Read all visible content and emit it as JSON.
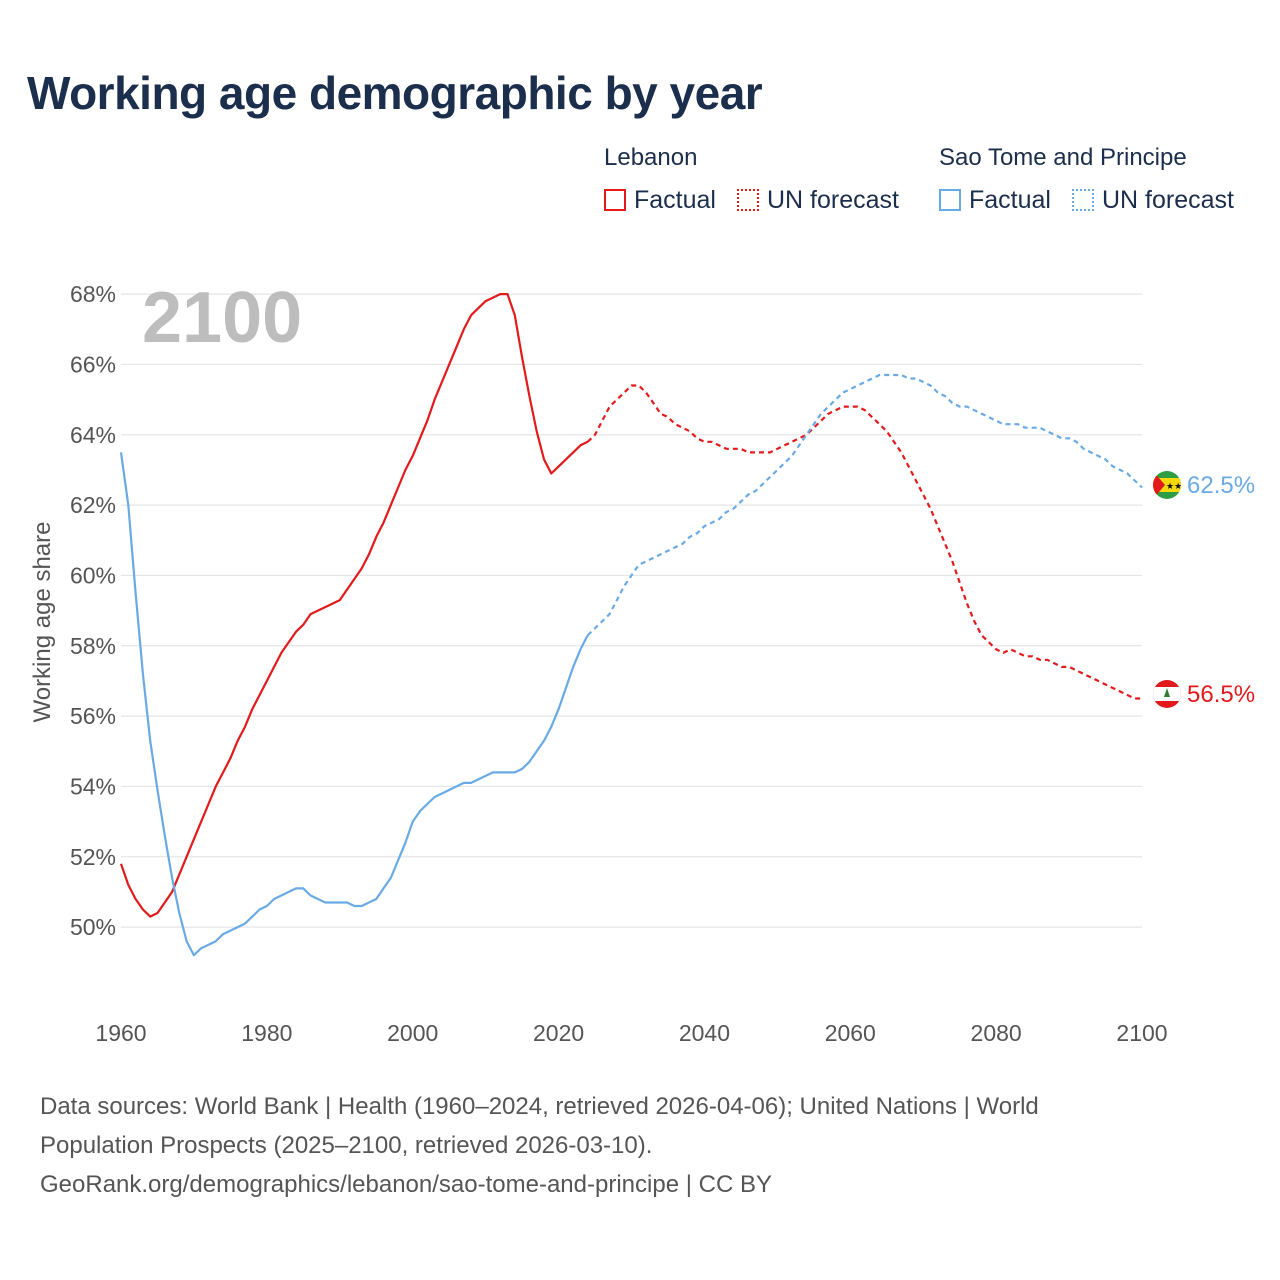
{
  "title": "Working age demographic by year",
  "legend": {
    "groups": [
      {
        "country": "Lebanon",
        "factual": "Factual",
        "forecast": "UN forecast"
      },
      {
        "country": "Sao Tome and Principe",
        "factual": "Factual",
        "forecast": "UN forecast"
      }
    ]
  },
  "year_overlay": "2100",
  "footer": {
    "line1": "Data sources: World Bank | Health (1960–2024, retrieved 2026-04-06); United Nations | World",
    "line2": "Population Prospects (2025–2100, retrieved 2026-03-10).",
    "line3": "GeoRank.org/demographics/lebanon/sao-tome-and-principe | CC BY"
  },
  "chart_data": {
    "type": "line",
    "ylabel": "Working age share",
    "xlabel": "",
    "xlim": [
      1960,
      2100
    ],
    "ylim": [
      47.7,
      68.6
    ],
    "xticks": [
      1960,
      1980,
      2000,
      2020,
      2040,
      2060,
      2080,
      2100
    ],
    "yticks": [
      50,
      52,
      54,
      56,
      58,
      60,
      62,
      64,
      66,
      68
    ],
    "ytick_labels": [
      "50%",
      "52%",
      "54%",
      "56%",
      "58%",
      "60%",
      "62%",
      "64%",
      "66%",
      "68%"
    ],
    "grid": true,
    "forecast_start": 2024,
    "series": [
      {
        "name": "Lebanon",
        "color": "#e31a1c",
        "end_label": "56.5%",
        "points": [
          [
            1960,
            51.8
          ],
          [
            1961,
            51.2
          ],
          [
            1962,
            50.8
          ],
          [
            1963,
            50.5
          ],
          [
            1964,
            50.3
          ],
          [
            1965,
            50.4
          ],
          [
            1966,
            50.7
          ],
          [
            1967,
            51.0
          ],
          [
            1968,
            51.5
          ],
          [
            1969,
            52.0
          ],
          [
            1970,
            52.5
          ],
          [
            1971,
            53.0
          ],
          [
            1972,
            53.5
          ],
          [
            1973,
            54.0
          ],
          [
            1974,
            54.4
          ],
          [
            1975,
            54.8
          ],
          [
            1976,
            55.3
          ],
          [
            1977,
            55.7
          ],
          [
            1978,
            56.2
          ],
          [
            1979,
            56.6
          ],
          [
            1980,
            57.0
          ],
          [
            1981,
            57.4
          ],
          [
            1982,
            57.8
          ],
          [
            1983,
            58.1
          ],
          [
            1984,
            58.4
          ],
          [
            1985,
            58.6
          ],
          [
            1986,
            58.9
          ],
          [
            1987,
            59.0
          ],
          [
            1988,
            59.1
          ],
          [
            1989,
            59.2
          ],
          [
            1990,
            59.3
          ],
          [
            1991,
            59.6
          ],
          [
            1992,
            59.9
          ],
          [
            1993,
            60.2
          ],
          [
            1994,
            60.6
          ],
          [
            1995,
            61.1
          ],
          [
            1996,
            61.5
          ],
          [
            1997,
            62.0
          ],
          [
            1998,
            62.5
          ],
          [
            1999,
            63.0
          ],
          [
            2000,
            63.4
          ],
          [
            2001,
            63.9
          ],
          [
            2002,
            64.4
          ],
          [
            2003,
            65.0
          ],
          [
            2004,
            65.5
          ],
          [
            2005,
            66.0
          ],
          [
            2006,
            66.5
          ],
          [
            2007,
            67.0
          ],
          [
            2008,
            67.4
          ],
          [
            2009,
            67.6
          ],
          [
            2010,
            67.8
          ],
          [
            2011,
            67.9
          ],
          [
            2012,
            68.0
          ],
          [
            2013,
            68.0
          ],
          [
            2014,
            67.4
          ],
          [
            2015,
            66.2
          ],
          [
            2016,
            65.1
          ],
          [
            2017,
            64.1
          ],
          [
            2018,
            63.3
          ],
          [
            2019,
            62.9
          ],
          [
            2020,
            63.1
          ],
          [
            2021,
            63.3
          ],
          [
            2022,
            63.5
          ],
          [
            2023,
            63.7
          ],
          [
            2024,
            63.8
          ],
          [
            2025,
            64.0
          ],
          [
            2026,
            64.4
          ],
          [
            2027,
            64.8
          ],
          [
            2028,
            65.0
          ],
          [
            2029,
            65.2
          ],
          [
            2030,
            65.4
          ],
          [
            2031,
            65.4
          ],
          [
            2032,
            65.2
          ],
          [
            2033,
            64.9
          ],
          [
            2034,
            64.6
          ],
          [
            2035,
            64.5
          ],
          [
            2036,
            64.3
          ],
          [
            2037,
            64.2
          ],
          [
            2038,
            64.1
          ],
          [
            2039,
            63.9
          ],
          [
            2040,
            63.8
          ],
          [
            2041,
            63.8
          ],
          [
            2042,
            63.7
          ],
          [
            2043,
            63.6
          ],
          [
            2044,
            63.6
          ],
          [
            2045,
            63.6
          ],
          [
            2046,
            63.5
          ],
          [
            2047,
            63.5
          ],
          [
            2048,
            63.5
          ],
          [
            2049,
            63.5
          ],
          [
            2050,
            63.6
          ],
          [
            2051,
            63.7
          ],
          [
            2052,
            63.8
          ],
          [
            2053,
            63.9
          ],
          [
            2054,
            64.0
          ],
          [
            2055,
            64.2
          ],
          [
            2056,
            64.4
          ],
          [
            2057,
            64.6
          ],
          [
            2058,
            64.7
          ],
          [
            2059,
            64.8
          ],
          [
            2060,
            64.8
          ],
          [
            2061,
            64.8
          ],
          [
            2062,
            64.7
          ],
          [
            2063,
            64.5
          ],
          [
            2064,
            64.3
          ],
          [
            2065,
            64.1
          ],
          [
            2066,
            63.8
          ],
          [
            2067,
            63.5
          ],
          [
            2068,
            63.1
          ],
          [
            2069,
            62.7
          ],
          [
            2070,
            62.3
          ],
          [
            2071,
            61.9
          ],
          [
            2072,
            61.4
          ],
          [
            2073,
            60.9
          ],
          [
            2074,
            60.4
          ],
          [
            2075,
            59.8
          ],
          [
            2076,
            59.2
          ],
          [
            2077,
            58.7
          ],
          [
            2078,
            58.3
          ],
          [
            2079,
            58.1
          ],
          [
            2080,
            57.9
          ],
          [
            2081,
            57.8
          ],
          [
            2082,
            57.9
          ],
          [
            2083,
            57.8
          ],
          [
            2084,
            57.7
          ],
          [
            2085,
            57.7
          ],
          [
            2086,
            57.6
          ],
          [
            2087,
            57.6
          ],
          [
            2088,
            57.5
          ],
          [
            2089,
            57.4
          ],
          [
            2090,
            57.4
          ],
          [
            2091,
            57.3
          ],
          [
            2092,
            57.2
          ],
          [
            2093,
            57.1
          ],
          [
            2094,
            57.0
          ],
          [
            2095,
            56.9
          ],
          [
            2096,
            56.8
          ],
          [
            2097,
            56.7
          ],
          [
            2098,
            56.6
          ],
          [
            2099,
            56.5
          ],
          [
            2100,
            56.5
          ]
        ]
      },
      {
        "name": "Sao Tome and Principe",
        "color": "#6aaae4",
        "end_label": "62.5%",
        "points": [
          [
            1960,
            63.5
          ],
          [
            1961,
            62.0
          ],
          [
            1962,
            59.5
          ],
          [
            1963,
            57.2
          ],
          [
            1964,
            55.3
          ],
          [
            1965,
            53.9
          ],
          [
            1966,
            52.6
          ],
          [
            1967,
            51.4
          ],
          [
            1968,
            50.4
          ],
          [
            1969,
            49.6
          ],
          [
            1970,
            49.2
          ],
          [
            1971,
            49.4
          ],
          [
            1972,
            49.5
          ],
          [
            1973,
            49.6
          ],
          [
            1974,
            49.8
          ],
          [
            1975,
            49.9
          ],
          [
            1976,
            50.0
          ],
          [
            1977,
            50.1
          ],
          [
            1978,
            50.3
          ],
          [
            1979,
            50.5
          ],
          [
            1980,
            50.6
          ],
          [
            1981,
            50.8
          ],
          [
            1982,
            50.9
          ],
          [
            1983,
            51.0
          ],
          [
            1984,
            51.1
          ],
          [
            1985,
            51.1
          ],
          [
            1986,
            50.9
          ],
          [
            1987,
            50.8
          ],
          [
            1988,
            50.7
          ],
          [
            1989,
            50.7
          ],
          [
            1990,
            50.7
          ],
          [
            1991,
            50.7
          ],
          [
            1992,
            50.6
          ],
          [
            1993,
            50.6
          ],
          [
            1994,
            50.7
          ],
          [
            1995,
            50.8
          ],
          [
            1996,
            51.1
          ],
          [
            1997,
            51.4
          ],
          [
            1998,
            51.9
          ],
          [
            1999,
            52.4
          ],
          [
            2000,
            53.0
          ],
          [
            2001,
            53.3
          ],
          [
            2002,
            53.5
          ],
          [
            2003,
            53.7
          ],
          [
            2004,
            53.8
          ],
          [
            2005,
            53.9
          ],
          [
            2006,
            54.0
          ],
          [
            2007,
            54.1
          ],
          [
            2008,
            54.1
          ],
          [
            2009,
            54.2
          ],
          [
            2010,
            54.3
          ],
          [
            2011,
            54.4
          ],
          [
            2012,
            54.4
          ],
          [
            2013,
            54.4
          ],
          [
            2014,
            54.4
          ],
          [
            2015,
            54.5
          ],
          [
            2016,
            54.7
          ],
          [
            2017,
            55.0
          ],
          [
            2018,
            55.3
          ],
          [
            2019,
            55.7
          ],
          [
            2020,
            56.2
          ],
          [
            2021,
            56.8
          ],
          [
            2022,
            57.4
          ],
          [
            2023,
            57.9
          ],
          [
            2024,
            58.3
          ],
          [
            2025,
            58.5
          ],
          [
            2026,
            58.7
          ],
          [
            2027,
            58.9
          ],
          [
            2028,
            59.3
          ],
          [
            2029,
            59.7
          ],
          [
            2030,
            60.0
          ],
          [
            2031,
            60.3
          ],
          [
            2032,
            60.4
          ],
          [
            2033,
            60.5
          ],
          [
            2034,
            60.6
          ],
          [
            2035,
            60.7
          ],
          [
            2036,
            60.8
          ],
          [
            2037,
            60.9
          ],
          [
            2038,
            61.1
          ],
          [
            2039,
            61.2
          ],
          [
            2040,
            61.4
          ],
          [
            2041,
            61.5
          ],
          [
            2042,
            61.6
          ],
          [
            2043,
            61.8
          ],
          [
            2044,
            61.9
          ],
          [
            2045,
            62.1
          ],
          [
            2046,
            62.3
          ],
          [
            2047,
            62.4
          ],
          [
            2048,
            62.6
          ],
          [
            2049,
            62.8
          ],
          [
            2050,
            63.0
          ],
          [
            2051,
            63.2
          ],
          [
            2052,
            63.4
          ],
          [
            2053,
            63.7
          ],
          [
            2054,
            64.0
          ],
          [
            2055,
            64.3
          ],
          [
            2056,
            64.6
          ],
          [
            2057,
            64.8
          ],
          [
            2058,
            65.0
          ],
          [
            2059,
            65.2
          ],
          [
            2060,
            65.3
          ],
          [
            2061,
            65.4
          ],
          [
            2062,
            65.5
          ],
          [
            2063,
            65.6
          ],
          [
            2064,
            65.7
          ],
          [
            2065,
            65.7
          ],
          [
            2066,
            65.7
          ],
          [
            2067,
            65.7
          ],
          [
            2068,
            65.6
          ],
          [
            2069,
            65.6
          ],
          [
            2070,
            65.5
          ],
          [
            2071,
            65.4
          ],
          [
            2072,
            65.2
          ],
          [
            2073,
            65.1
          ],
          [
            2074,
            64.9
          ],
          [
            2075,
            64.8
          ],
          [
            2076,
            64.8
          ],
          [
            2077,
            64.7
          ],
          [
            2078,
            64.6
          ],
          [
            2079,
            64.5
          ],
          [
            2080,
            64.4
          ],
          [
            2081,
            64.3
          ],
          [
            2082,
            64.3
          ],
          [
            2083,
            64.3
          ],
          [
            2084,
            64.2
          ],
          [
            2085,
            64.2
          ],
          [
            2086,
            64.2
          ],
          [
            2087,
            64.1
          ],
          [
            2088,
            64.0
          ],
          [
            2089,
            63.9
          ],
          [
            2090,
            63.9
          ],
          [
            2091,
            63.8
          ],
          [
            2092,
            63.6
          ],
          [
            2093,
            63.5
          ],
          [
            2094,
            63.4
          ],
          [
            2095,
            63.3
          ],
          [
            2096,
            63.1
          ],
          [
            2097,
            63.0
          ],
          [
            2098,
            62.9
          ],
          [
            2099,
            62.7
          ],
          [
            2100,
            62.5
          ]
        ]
      }
    ]
  }
}
